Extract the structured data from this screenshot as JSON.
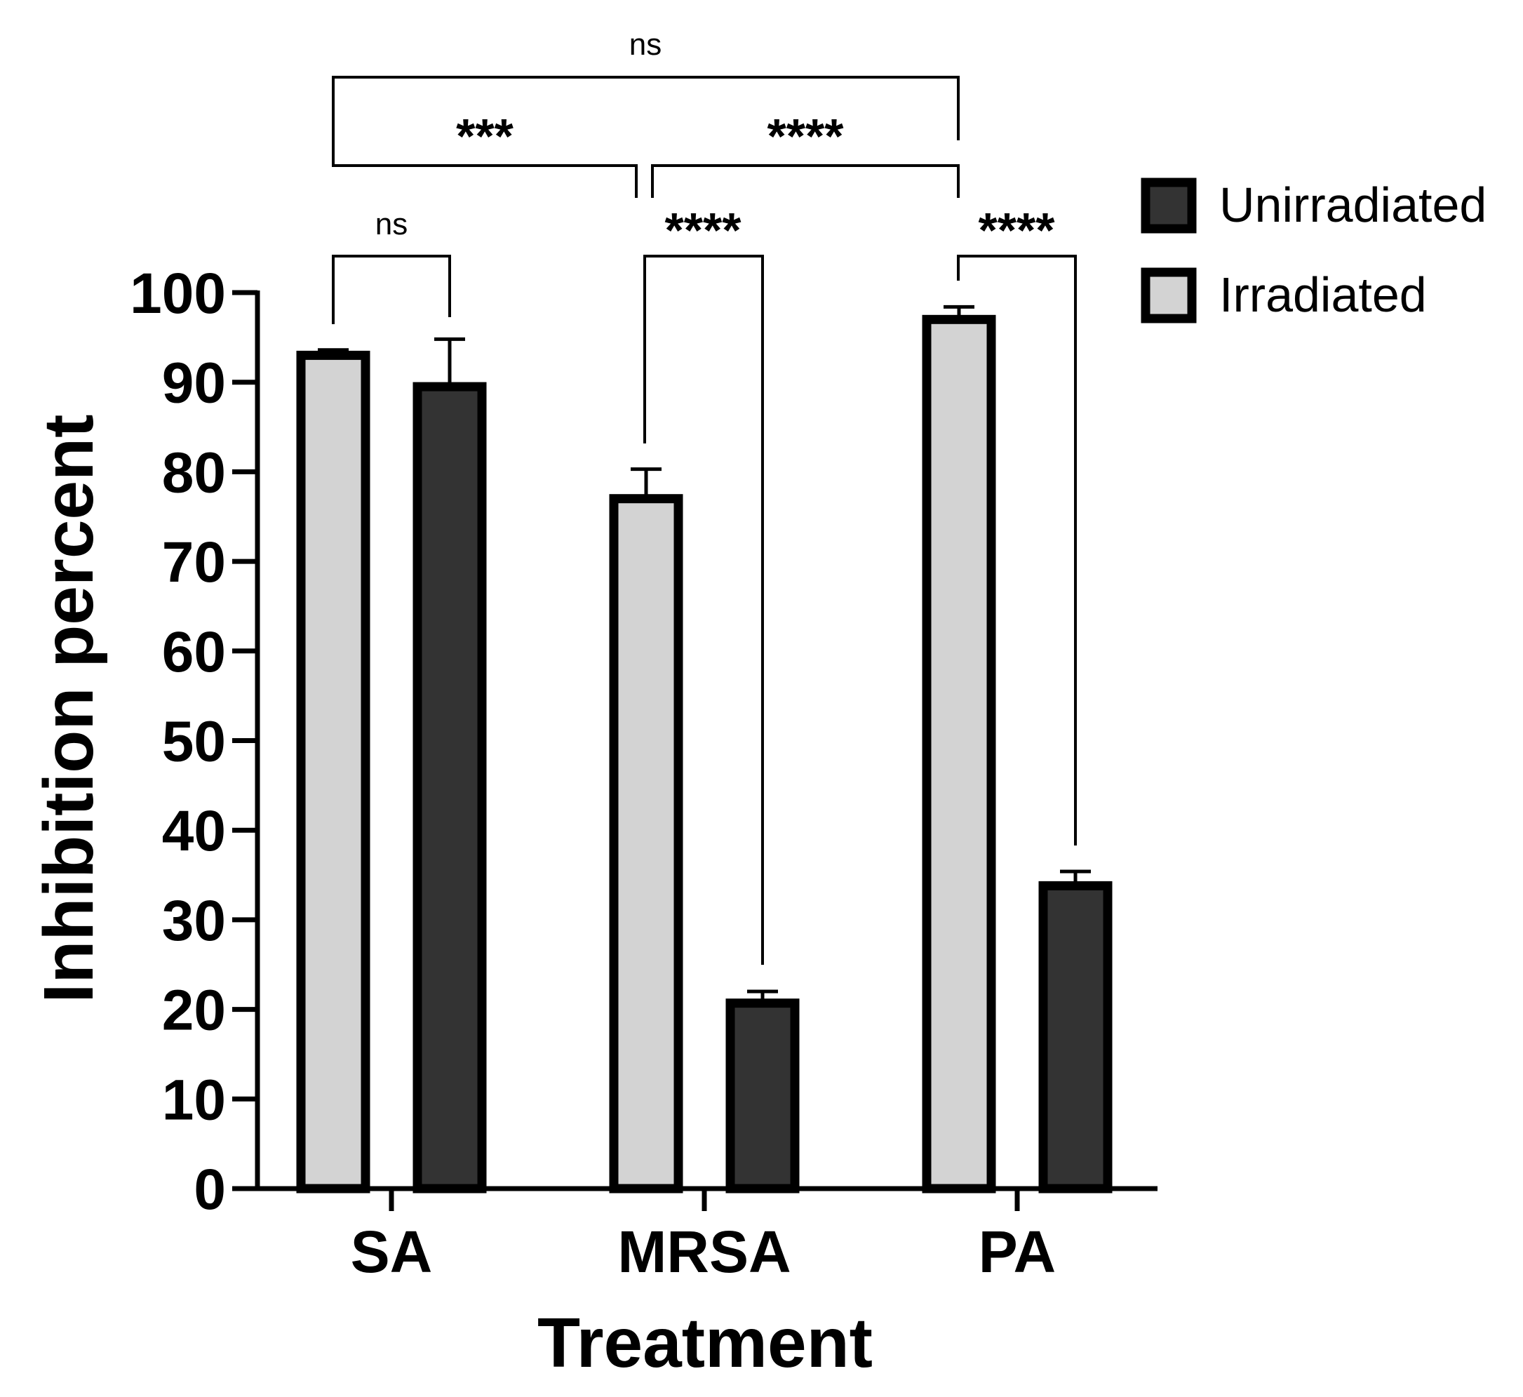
{
  "chart_data": {
    "type": "bar",
    "title": "",
    "xlabel": "Treatment",
    "ylabel": "Inhibition percent",
    "ylim": [
      0,
      100
    ],
    "yticks": [
      "0",
      "10",
      "20",
      "30",
      "40",
      "50",
      "60",
      "70",
      "80",
      "90",
      "100"
    ],
    "categories": [
      "SA",
      "MRSA",
      "PA"
    ],
    "series": [
      {
        "name": "Irradiated",
        "color": "#d3d3d3",
        "values": [
          93,
          77,
          97
        ],
        "errors": [
          0.6,
          3.3,
          1.4
        ]
      },
      {
        "name": "Unirradiated",
        "color": "#333333",
        "values": [
          89.5,
          20.7,
          33.8
        ],
        "errors": [
          5.3,
          1.3,
          1.6
        ]
      }
    ],
    "legend": {
      "position": "top-right",
      "entries": [
        {
          "label": "Unirradiated",
          "color": "#333333"
        },
        {
          "label": "Irradiated",
          "color": "#d3d3d3"
        }
      ]
    },
    "annotations": [
      {
        "label": "ns",
        "between": [
          "SA Irradiated",
          "PA Irradiated"
        ]
      },
      {
        "label": "***",
        "between": [
          "SA Irradiated",
          "MRSA Irradiated"
        ]
      },
      {
        "label": "****",
        "between": [
          "MRSA Irradiated",
          "PA Irradiated"
        ]
      },
      {
        "label": "ns",
        "between": [
          "SA Irradiated",
          "SA Unirradiated"
        ]
      },
      {
        "label": "****",
        "between": [
          "MRSA Irradiated",
          "MRSA Unirradiated"
        ]
      },
      {
        "label": "****",
        "between": [
          "PA Irradiated",
          "PA Unirradiated"
        ]
      }
    ]
  }
}
